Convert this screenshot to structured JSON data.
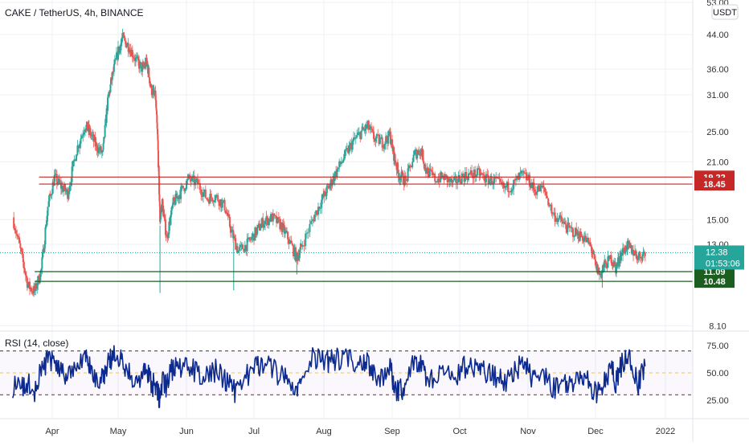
{
  "header": {
    "symbol_title": "CAKE / TetherUS, 4h, BINANCE"
  },
  "currency_badge": "USDT",
  "rsi_label": "RSI (14, close)",
  "colors": {
    "up": "#26a69a",
    "down": "#ef5350",
    "resistance": "#c62828",
    "support": "#1b5e20",
    "current": "#26a69a",
    "rsi": "#0d2a8f",
    "rsi_mid": "#f6c343",
    "rsi_band": "#333333",
    "rsi_upper": "#333333",
    "rsi_lower": "#8b1a2e",
    "grid": "#eef0f3",
    "axis_text": "#333333"
  },
  "chart_data": [
    {
      "type": "candlestick",
      "title": "CAKE / TetherUS, 4h, BINANCE",
      "scale": "log",
      "y_ticks": [
        8.1,
        13.0,
        15.0,
        21.0,
        25.0,
        31.0,
        36.0,
        44.0,
        53.0
      ],
      "y_tick_labels": [
        "8.10",
        "13.00",
        "15.00",
        "21.00",
        "25.00",
        "31.00",
        "36.00",
        "44.00",
        "53.00"
      ],
      "x_tick_labels": [
        "Apr",
        "May",
        "Jun",
        "Jul",
        "Aug",
        "Sep",
        "Oct",
        "Nov",
        "Dec",
        "2022"
      ],
      "x_tick_dates": [
        "2021-04-01",
        "2021-05-01",
        "2021-06-01",
        "2021-07-01",
        "2021-08-01",
        "2021-09-01",
        "2021-10-01",
        "2021-11-01",
        "2021-12-01",
        "2022-01-01"
      ],
      "series_close_path": [
        [
          "2021-03-14",
          15.2
        ],
        [
          "2021-03-18",
          12.2
        ],
        [
          "2021-03-21",
          10.2
        ],
        [
          "2021-03-24",
          9.9
        ],
        [
          "2021-03-27",
          11.2
        ],
        [
          "2021-03-30",
          16.2
        ],
        [
          "2021-04-02",
          19.2
        ],
        [
          "2021-04-05",
          18.2
        ],
        [
          "2021-04-08",
          17.5
        ],
        [
          "2021-04-12",
          22.5
        ],
        [
          "2021-04-16",
          26.0
        ],
        [
          "2021-04-18",
          25.0
        ],
        [
          "2021-04-21",
          23.0
        ],
        [
          "2021-04-24",
          22.0
        ],
        [
          "2021-04-26",
          29.0
        ],
        [
          "2021-04-28",
          34.0
        ],
        [
          "2021-05-01",
          40.0
        ],
        [
          "2021-05-03",
          43.0
        ],
        [
          "2021-05-06",
          41.0
        ],
        [
          "2021-05-09",
          38.0
        ],
        [
          "2021-05-12",
          36.0
        ],
        [
          "2021-05-14",
          37.5
        ],
        [
          "2021-05-16",
          32.0
        ],
        [
          "2021-05-18",
          30.5
        ],
        [
          "2021-05-19",
          23.5
        ],
        [
          "2021-05-20",
          15.0
        ],
        [
          "2021-05-21",
          16.5
        ],
        [
          "2021-05-23",
          13.5
        ],
        [
          "2021-05-26",
          16.5
        ],
        [
          "2021-05-29",
          17.5
        ],
        [
          "2021-06-02",
          19.0
        ],
        [
          "2021-06-06",
          18.5
        ],
        [
          "2021-06-10",
          17.0
        ],
        [
          "2021-06-14",
          17.2
        ],
        [
          "2021-06-18",
          16.2
        ],
        [
          "2021-06-21",
          14.0
        ],
        [
          "2021-06-24",
          12.5
        ],
        [
          "2021-06-28",
          13.0
        ],
        [
          "2021-07-02",
          14.0
        ],
        [
          "2021-07-05",
          14.8
        ],
        [
          "2021-07-09",
          15.2
        ],
        [
          "2021-07-13",
          14.5
        ],
        [
          "2021-07-16",
          13.5
        ],
        [
          "2021-07-20",
          12.0
        ],
        [
          "2021-07-22",
          12.8
        ],
        [
          "2021-07-27",
          15.0
        ],
        [
          "2021-07-31",
          16.8
        ],
        [
          "2021-08-03",
          18.0
        ],
        [
          "2021-08-06",
          19.5
        ],
        [
          "2021-08-10",
          21.5
        ],
        [
          "2021-08-14",
          23.5
        ],
        [
          "2021-08-18",
          25.0
        ],
        [
          "2021-08-21",
          25.8
        ],
        [
          "2021-08-24",
          24.0
        ],
        [
          "2021-08-28",
          23.5
        ],
        [
          "2021-08-31",
          24.5
        ],
        [
          "2021-09-02",
          21.5
        ],
        [
          "2021-09-04",
          19.5
        ],
        [
          "2021-09-07",
          18.8
        ],
        [
          "2021-09-11",
          22.0
        ],
        [
          "2021-09-14",
          22.5
        ],
        [
          "2021-09-16",
          20.0
        ],
        [
          "2021-09-20",
          19.0
        ],
        [
          "2021-09-24",
          19.2
        ],
        [
          "2021-09-28",
          18.5
        ],
        [
          "2021-10-02",
          19.3
        ],
        [
          "2021-10-06",
          19.5
        ],
        [
          "2021-10-10",
          19.6
        ],
        [
          "2021-10-13",
          19.0
        ],
        [
          "2021-10-17",
          18.8
        ],
        [
          "2021-10-21",
          18.0
        ],
        [
          "2021-10-25",
          18.3
        ],
        [
          "2021-10-29",
          19.5
        ],
        [
          "2021-11-01",
          19.0
        ],
        [
          "2021-11-04",
          17.8
        ],
        [
          "2021-11-08",
          18.0
        ],
        [
          "2021-11-12",
          15.5
        ],
        [
          "2021-11-16",
          14.8
        ],
        [
          "2021-11-19",
          14.2
        ],
        [
          "2021-11-23",
          13.8
        ],
        [
          "2021-11-26",
          13.5
        ],
        [
          "2021-11-29",
          12.8
        ],
        [
          "2021-12-01",
          11.5
        ],
        [
          "2021-12-03",
          10.9
        ],
        [
          "2021-12-05",
          11.5
        ],
        [
          "2021-12-08",
          12.0
        ],
        [
          "2021-12-10",
          11.3
        ],
        [
          "2021-12-12",
          12.2
        ],
        [
          "2021-12-15",
          12.9
        ],
        [
          "2021-12-17",
          12.6
        ],
        [
          "2021-12-20",
          12.1
        ],
        [
          "2021-12-23",
          12.38
        ]
      ],
      "horizontal_levels": [
        {
          "label": "19.22",
          "value": 19.22,
          "kind": "resistance"
        },
        {
          "label": "18.45",
          "value": 18.45,
          "kind": "resistance"
        },
        {
          "label": "11.09",
          "value": 11.09,
          "kind": "support"
        },
        {
          "label": "10.48",
          "value": 10.48,
          "kind": "support"
        }
      ],
      "current_price": {
        "label": "12.38",
        "value": 12.38,
        "countdown": "01:53:06"
      }
    },
    {
      "type": "line",
      "name": "RSI (14, close)",
      "y_ticks": [
        25,
        50,
        75
      ],
      "y_tick_labels": [
        "25.00",
        "50.00",
        "75.00"
      ],
      "bands": {
        "upper": 70,
        "middle": 50,
        "lower": 30
      },
      "series_path": [
        [
          "2021-03-14",
          38
        ],
        [
          "2021-03-18",
          35
        ],
        [
          "2021-03-21",
          40
        ],
        [
          "2021-03-24",
          33
        ],
        [
          "2021-03-27",
          52
        ],
        [
          "2021-03-30",
          62
        ],
        [
          "2021-04-02",
          58
        ],
        [
          "2021-04-05",
          52
        ],
        [
          "2021-04-08",
          48
        ],
        [
          "2021-04-12",
          61
        ],
        [
          "2021-04-16",
          63
        ],
        [
          "2021-04-18",
          55
        ],
        [
          "2021-04-21",
          46
        ],
        [
          "2021-04-24",
          44
        ],
        [
          "2021-04-26",
          59
        ],
        [
          "2021-04-28",
          64
        ],
        [
          "2021-05-01",
          66
        ],
        [
          "2021-05-03",
          63
        ],
        [
          "2021-05-06",
          49
        ],
        [
          "2021-05-09",
          46
        ],
        [
          "2021-05-12",
          45
        ],
        [
          "2021-05-14",
          52
        ],
        [
          "2021-05-16",
          40
        ],
        [
          "2021-05-18",
          38
        ],
        [
          "2021-05-19",
          30
        ],
        [
          "2021-05-20",
          28
        ],
        [
          "2021-05-21",
          42
        ],
        [
          "2021-05-23",
          38
        ],
        [
          "2021-05-26",
          56
        ],
        [
          "2021-05-29",
          54
        ],
        [
          "2021-06-02",
          57
        ],
        [
          "2021-06-06",
          50
        ],
        [
          "2021-06-10",
          46
        ],
        [
          "2021-06-14",
          52
        ],
        [
          "2021-06-18",
          43
        ],
        [
          "2021-06-21",
          36
        ],
        [
          "2021-06-24",
          31
        ],
        [
          "2021-06-28",
          47
        ],
        [
          "2021-07-02",
          55
        ],
        [
          "2021-07-05",
          58
        ],
        [
          "2021-07-09",
          56
        ],
        [
          "2021-07-13",
          46
        ],
        [
          "2021-07-16",
          43
        ],
        [
          "2021-07-20",
          34
        ],
        [
          "2021-07-22",
          45
        ],
        [
          "2021-07-27",
          62
        ],
        [
          "2021-07-31",
          64
        ],
        [
          "2021-08-03",
          60
        ],
        [
          "2021-08-06",
          62
        ],
        [
          "2021-08-10",
          63
        ],
        [
          "2021-08-14",
          61
        ],
        [
          "2021-08-18",
          60
        ],
        [
          "2021-08-21",
          62
        ],
        [
          "2021-08-24",
          45
        ],
        [
          "2021-08-28",
          48
        ],
        [
          "2021-08-31",
          55
        ],
        [
          "2021-09-02",
          38
        ],
        [
          "2021-09-04",
          33
        ],
        [
          "2021-09-07",
          40
        ],
        [
          "2021-09-11",
          60
        ],
        [
          "2021-09-14",
          58
        ],
        [
          "2021-09-16",
          44
        ],
        [
          "2021-09-20",
          46
        ],
        [
          "2021-09-24",
          52
        ],
        [
          "2021-09-28",
          45
        ],
        [
          "2021-10-02",
          55
        ],
        [
          "2021-10-06",
          56
        ],
        [
          "2021-10-10",
          55
        ],
        [
          "2021-10-13",
          49
        ],
        [
          "2021-10-17",
          48
        ],
        [
          "2021-10-21",
          40
        ],
        [
          "2021-10-25",
          47
        ],
        [
          "2021-10-29",
          58
        ],
        [
          "2021-11-01",
          52
        ],
        [
          "2021-11-04",
          42
        ],
        [
          "2021-11-08",
          50
        ],
        [
          "2021-11-12",
          35
        ],
        [
          "2021-11-16",
          40
        ],
        [
          "2021-11-19",
          38
        ],
        [
          "2021-11-23",
          40
        ],
        [
          "2021-11-26",
          45
        ],
        [
          "2021-11-29",
          38
        ],
        [
          "2021-12-01",
          33
        ],
        [
          "2021-12-03",
          30
        ],
        [
          "2021-12-05",
          45
        ],
        [
          "2021-12-08",
          55
        ],
        [
          "2021-12-10",
          42
        ],
        [
          "2021-12-12",
          55
        ],
        [
          "2021-12-15",
          64
        ],
        [
          "2021-12-17",
          58
        ],
        [
          "2021-12-20",
          40
        ],
        [
          "2021-12-23",
          56
        ]
      ]
    }
  ]
}
